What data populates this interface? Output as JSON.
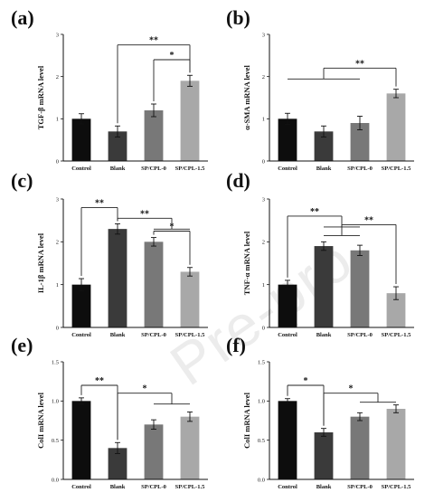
{
  "watermark": "Pre-pro",
  "chart_data": [
    {
      "type": "bar",
      "label": "(a)",
      "ylabel": "TGF-β mRNA level",
      "categories": [
        "Control",
        "Blank",
        "SP/CPL-0",
        "SP/CPL-1.5"
      ],
      "values": [
        1.0,
        0.7,
        1.2,
        1.9
      ],
      "errors": [
        0.12,
        0.13,
        0.15,
        0.13
      ],
      "colors": [
        "#0d0d0d",
        "#3a3a3a",
        "#787878",
        "#a8a8a8"
      ],
      "ylim": [
        0,
        3
      ],
      "yticks": [
        0,
        1,
        2,
        3
      ],
      "ytick_labels": [
        "0",
        "1",
        "2",
        "3"
      ],
      "annotations": [
        {
          "text": "**",
          "from": [
            1
          ],
          "to": [
            3
          ],
          "level": 2.75
        },
        {
          "text": "*",
          "from": [
            2
          ],
          "to": [
            3
          ],
          "level": 2.4
        }
      ]
    },
    {
      "type": "bar",
      "label": "(b)",
      "ylabel": "α-SMA mRNA level",
      "categories": [
        "Control",
        "Blank",
        "SP/CPL-0",
        "SP/CPL-1.5"
      ],
      "values": [
        1.0,
        0.7,
        0.9,
        1.6
      ],
      "errors": [
        0.13,
        0.13,
        0.16,
        0.1
      ],
      "colors": [
        "#0d0d0d",
        "#3a3a3a",
        "#787878",
        "#a8a8a8"
      ],
      "ylim": [
        0,
        3
      ],
      "yticks": [
        0,
        1,
        2,
        3
      ],
      "ytick_labels": [
        "0",
        "1",
        "2",
        "3"
      ],
      "annotations": [
        {
          "text": "**",
          "from": [
            0,
            1,
            2
          ],
          "to": [
            3
          ],
          "level": 2.2
        }
      ]
    },
    {
      "type": "bar",
      "label": "(c)",
      "ylabel": "IL-1β mRNA level",
      "categories": [
        "Control",
        "Blank",
        "SP/CPL-0",
        "SP/CPL-1.5"
      ],
      "values": [
        1.0,
        2.3,
        2.0,
        1.3
      ],
      "errors": [
        0.14,
        0.12,
        0.1,
        0.1
      ],
      "colors": [
        "#0d0d0d",
        "#3a3a3a",
        "#787878",
        "#a8a8a8"
      ],
      "ylim": [
        0,
        3
      ],
      "yticks": [
        0,
        1,
        2,
        3
      ],
      "ytick_labels": [
        "0",
        "1",
        "2",
        "3"
      ],
      "annotations": [
        {
          "text": "**",
          "from": [
            0
          ],
          "to": [
            1
          ],
          "level": 2.8
        },
        {
          "text": "**",
          "from": [
            1
          ],
          "to": [
            2,
            3
          ],
          "level": 2.55
        },
        {
          "text": "*",
          "from": [
            2
          ],
          "to": [
            3
          ],
          "level": 2.25
        }
      ]
    },
    {
      "type": "bar",
      "label": "(d)",
      "ylabel": "TNF-α mRNA level",
      "categories": [
        "Control",
        "Blank",
        "SP/CPL-0",
        "SP/CPL-1.5"
      ],
      "values": [
        1.0,
        1.9,
        1.8,
        0.8
      ],
      "errors": [
        0.1,
        0.1,
        0.12,
        0.15
      ],
      "colors": [
        "#0d0d0d",
        "#3a3a3a",
        "#787878",
        "#a8a8a8"
      ],
      "ylim": [
        0,
        3
      ],
      "yticks": [
        0,
        1,
        2,
        3
      ],
      "ytick_labels": [
        "0",
        "1",
        "2",
        "3"
      ],
      "annotations": [
        {
          "text": "**",
          "from": [
            0
          ],
          "to": [
            1,
            2
          ],
          "level": 2.6
        },
        {
          "text": "**",
          "from": [
            1,
            2
          ],
          "to": [
            3
          ],
          "level": 2.4
        }
      ]
    },
    {
      "type": "bar",
      "label": "(e)",
      "ylabel": "ColI mRNA level",
      "categories": [
        "Control",
        "Blank",
        "SP/CPL-0",
        "SP/CPL-1.5"
      ],
      "values": [
        1.0,
        0.4,
        0.7,
        0.8
      ],
      "errors": [
        0.04,
        0.07,
        0.06,
        0.06
      ],
      "colors": [
        "#0d0d0d",
        "#3a3a3a",
        "#787878",
        "#a8a8a8"
      ],
      "ylim": [
        0,
        1.5
      ],
      "yticks": [
        0,
        0.5,
        1.0,
        1.5
      ],
      "ytick_labels": [
        "0.0",
        "0.5",
        "1.0",
        "1.5"
      ],
      "annotations": [
        {
          "text": "**",
          "from": [
            0
          ],
          "to": [
            1
          ],
          "level": 1.2
        },
        {
          "text": "*",
          "from": [
            1
          ],
          "to": [
            2,
            3
          ],
          "level": 1.1
        }
      ]
    },
    {
      "type": "bar",
      "label": "(f)",
      "ylabel": "ColI mRNA level",
      "categories": [
        "Control",
        "Blank",
        "SP/CPL-0",
        "SP/CPL-1.5"
      ],
      "values": [
        1.0,
        0.6,
        0.8,
        0.9
      ],
      "errors": [
        0.03,
        0.05,
        0.05,
        0.05
      ],
      "colors": [
        "#0d0d0d",
        "#3a3a3a",
        "#787878",
        "#a8a8a8"
      ],
      "ylim": [
        0,
        1.5
      ],
      "yticks": [
        0,
        0.5,
        1.0,
        1.5
      ],
      "ytick_labels": [
        "0.0",
        "0.5",
        "1.0",
        "1.5"
      ],
      "annotations": [
        {
          "text": "*",
          "from": [
            0
          ],
          "to": [
            1
          ],
          "level": 1.2
        },
        {
          "text": "*",
          "from": [
            1
          ],
          "to": [
            2,
            3
          ],
          "level": 1.1
        }
      ]
    }
  ]
}
